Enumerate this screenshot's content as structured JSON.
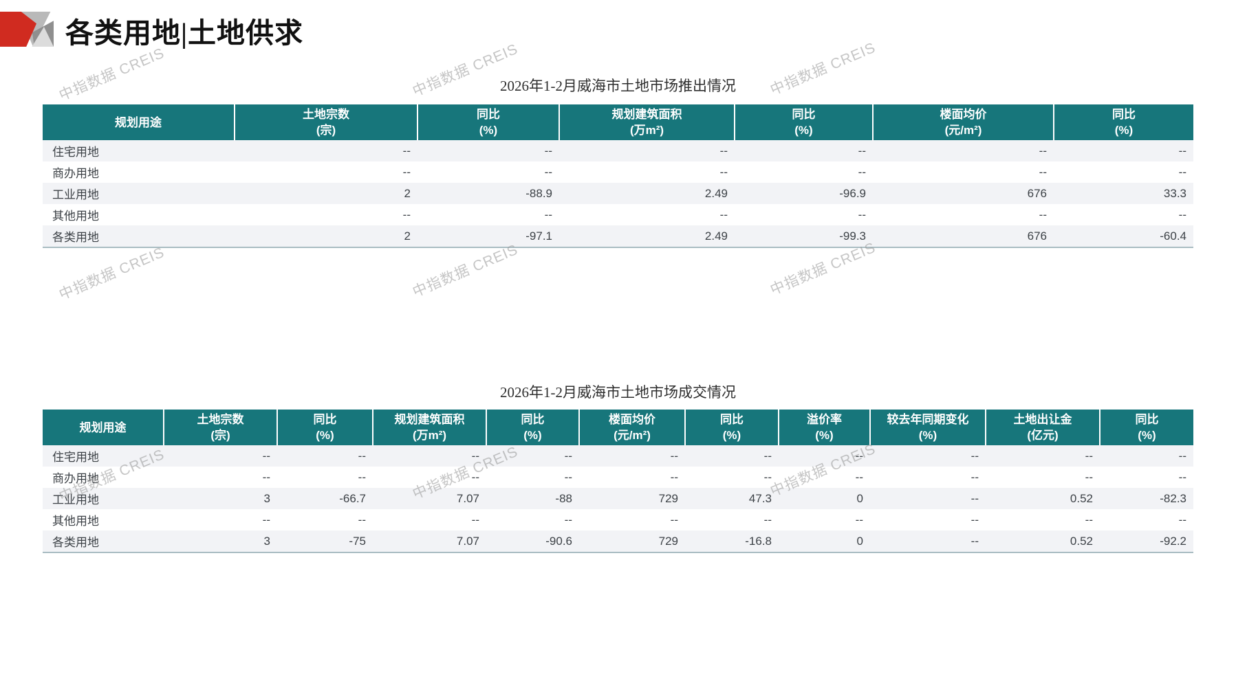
{
  "page": {
    "title": "各类用地|土地供求",
    "watermark_text": "中指数据 CREIS"
  },
  "colors": {
    "header_teal": "#17767B",
    "logo_red": "#D02B20",
    "row_alt": "#F2F3F6"
  },
  "supply_table": {
    "title": "2026年1-2月威海市土地市场推出情况",
    "columns": [
      {
        "label": "规划用途",
        "unit": ""
      },
      {
        "label": "土地宗数",
        "unit": "(宗)"
      },
      {
        "label": "同比",
        "unit": "(%)"
      },
      {
        "label": "规划建筑面积",
        "unit": "(万m²)"
      },
      {
        "label": "同比",
        "unit": "(%)"
      },
      {
        "label": "楼面均价",
        "unit": "(元/m²)"
      },
      {
        "label": "同比",
        "unit": "(%)"
      }
    ],
    "rows": [
      [
        "住宅用地",
        "--",
        "--",
        "--",
        "--",
        "--",
        "--"
      ],
      [
        "商办用地",
        "--",
        "--",
        "--",
        "--",
        "--",
        "--"
      ],
      [
        "工业用地",
        "2",
        "-88.9",
        "2.49",
        "-96.9",
        "676",
        "33.3"
      ],
      [
        "其他用地",
        "--",
        "--",
        "--",
        "--",
        "--",
        "--"
      ],
      [
        "各类用地",
        "2",
        "-97.1",
        "2.49",
        "-99.3",
        "676",
        "-60.4"
      ]
    ]
  },
  "transaction_table": {
    "title": "2026年1-2月威海市土地市场成交情况",
    "columns": [
      {
        "label": "规划用途",
        "unit": ""
      },
      {
        "label": "土地宗数",
        "unit": "(宗)"
      },
      {
        "label": "同比",
        "unit": "(%)"
      },
      {
        "label": "规划建筑面积",
        "unit": "(万m²)"
      },
      {
        "label": "同比",
        "unit": "(%)"
      },
      {
        "label": "楼面均价",
        "unit": "(元/m²)"
      },
      {
        "label": "同比",
        "unit": "(%)"
      },
      {
        "label": "溢价率",
        "unit": "(%)"
      },
      {
        "label": "较去年同期变化",
        "unit": "(%)"
      },
      {
        "label": "土地出让金",
        "unit": "(亿元)"
      },
      {
        "label": "同比",
        "unit": "(%)"
      }
    ],
    "rows": [
      [
        "住宅用地",
        "--",
        "--",
        "--",
        "--",
        "--",
        "--",
        "--",
        "--",
        "--",
        "--"
      ],
      [
        "商办用地",
        "--",
        "--",
        "--",
        "--",
        "--",
        "--",
        "--",
        "--",
        "--",
        "--"
      ],
      [
        "工业用地",
        "3",
        "-66.7",
        "7.07",
        "-88",
        "729",
        "47.3",
        "0",
        "--",
        "0.52",
        "-82.3"
      ],
      [
        "其他用地",
        "--",
        "--",
        "--",
        "--",
        "--",
        "--",
        "--",
        "--",
        "--",
        "--"
      ],
      [
        "各类用地",
        "3",
        "-75",
        "7.07",
        "-90.6",
        "729",
        "-16.8",
        "0",
        "--",
        "0.52",
        "-92.2"
      ]
    ]
  }
}
